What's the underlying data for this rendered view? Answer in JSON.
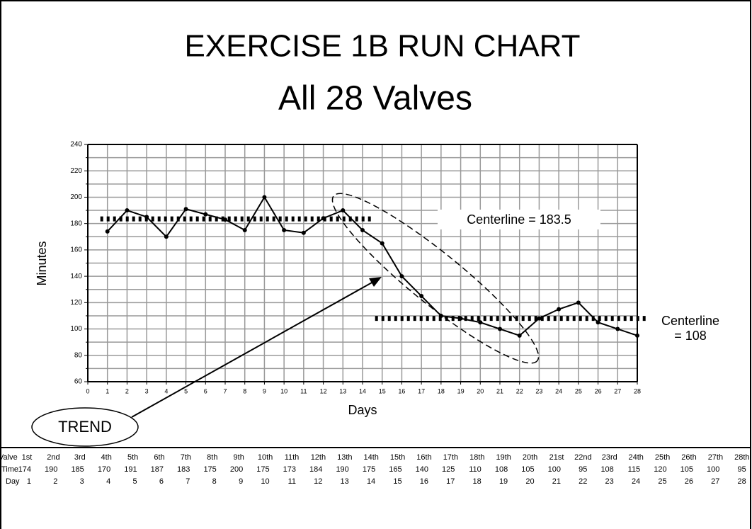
{
  "chart_data": {
    "type": "line",
    "title": "EXERCISE 1B RUN CHART",
    "subtitle": "All 28 Valves",
    "xlabel": "Days",
    "ylabel": "Minutes",
    "x": [
      1,
      2,
      3,
      4,
      5,
      6,
      7,
      8,
      9,
      10,
      11,
      12,
      13,
      14,
      15,
      16,
      17,
      18,
      19,
      20,
      21,
      22,
      23,
      24,
      25,
      26,
      27,
      28
    ],
    "series": [
      {
        "name": "Time",
        "color": "#000000",
        "values": [
          174,
          190,
          185,
          170,
          191,
          187,
          183,
          175,
          200,
          175,
          173,
          184,
          190,
          175,
          165,
          140,
          125,
          110,
          108,
          105,
          100,
          95,
          108,
          115,
          120,
          105,
          100,
          95
        ]
      }
    ],
    "xlim": [
      0,
      28
    ],
    "xticks": [
      0,
      1,
      2,
      3,
      4,
      5,
      6,
      7,
      8,
      9,
      10,
      11,
      12,
      13,
      14,
      15,
      16,
      17,
      18,
      19,
      20,
      21,
      22,
      23,
      24,
      25,
      26,
      27,
      28
    ],
    "ylim": [
      60,
      240
    ],
    "yticks": [
      60,
      80,
      100,
      120,
      140,
      160,
      180,
      200,
      220,
      240
    ],
    "minor_yticks": [
      70,
      90,
      110,
      130,
      150,
      170,
      190,
      210,
      230
    ],
    "grid": true,
    "reference_lines": [
      {
        "value": 183.5,
        "days": [
          1,
          14
        ],
        "label": [
          "Centerline = 183.5"
        ]
      },
      {
        "value": 108,
        "days": [
          15,
          28
        ],
        "label": [
          "Centerline",
          "= 108"
        ]
      }
    ],
    "annotation": "TREND"
  },
  "table": {
    "row_labels": [
      "Valve",
      "Time",
      "Day"
    ],
    "valves": [
      "1st",
      "2nd",
      "3rd",
      "4th",
      "5th",
      "6th",
      "7th",
      "8th",
      "9th",
      "10th",
      "11th",
      "12th",
      "13th",
      "14th",
      "15th",
      "16th",
      "17th",
      "18th",
      "19th",
      "20th",
      "21st",
      "22nd",
      "23rd",
      "24th",
      "25th",
      "26th",
      "27th",
      "28th"
    ]
  }
}
